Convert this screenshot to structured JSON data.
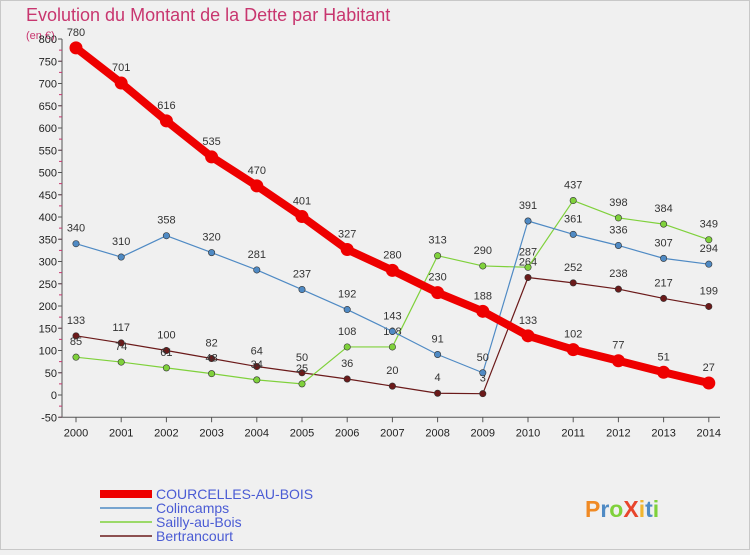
{
  "chart_data": {
    "type": "line",
    "title": "Evolution du Montant de la Dette par Habitant",
    "subtitle": "(en €)",
    "x": [
      "2000",
      "2001",
      "2002",
      "2003",
      "2004",
      "2005",
      "2006",
      "2007",
      "2008",
      "2009",
      "2010",
      "2011",
      "2012",
      "2013",
      "2014"
    ],
    "ylim": [
      -50,
      800
    ],
    "yticks": [
      -50,
      0,
      50,
      100,
      150,
      200,
      250,
      300,
      350,
      400,
      450,
      500,
      550,
      600,
      650,
      700,
      750,
      800
    ],
    "grid": false,
    "legend": "bottom-left",
    "series": [
      {
        "name": "COURCELLES-AU-BOIS",
        "color": "#ee0000",
        "values": [
          780,
          701,
          616,
          535,
          470,
          401,
          327,
          280,
          230,
          188,
          133,
          102,
          77,
          51,
          27
        ]
      },
      {
        "name": "Colincamps",
        "color": "#4f8ac4",
        "values": [
          340,
          310,
          358,
          320,
          281,
          237,
          192,
          143,
          91,
          50,
          391,
          361,
          336,
          307,
          294
        ]
      },
      {
        "name": "Sailly-au-Bois",
        "color": "#7fd13b",
        "values": [
          85,
          74,
          61,
          48,
          34,
          25,
          108,
          108,
          313,
          290,
          287,
          437,
          398,
          384,
          349
        ]
      },
      {
        "name": "Bertrancourt",
        "color": "#6b1a1a",
        "values": [
          133,
          117,
          100,
          82,
          64,
          50,
          36,
          20,
          4,
          3,
          264,
          252,
          238,
          217,
          199
        ]
      }
    ]
  },
  "legend_text_color": "#4a5bd4",
  "logo": {
    "text": "ProXiti",
    "letters": [
      "P",
      "r",
      "o",
      "X",
      "i",
      "t",
      "i"
    ],
    "colors": [
      "#f08a24",
      "#4f8ac4",
      "#7fd13b",
      "#e8452c",
      "#f2b630",
      "#4f8ac4",
      "#7fd13b"
    ]
  }
}
